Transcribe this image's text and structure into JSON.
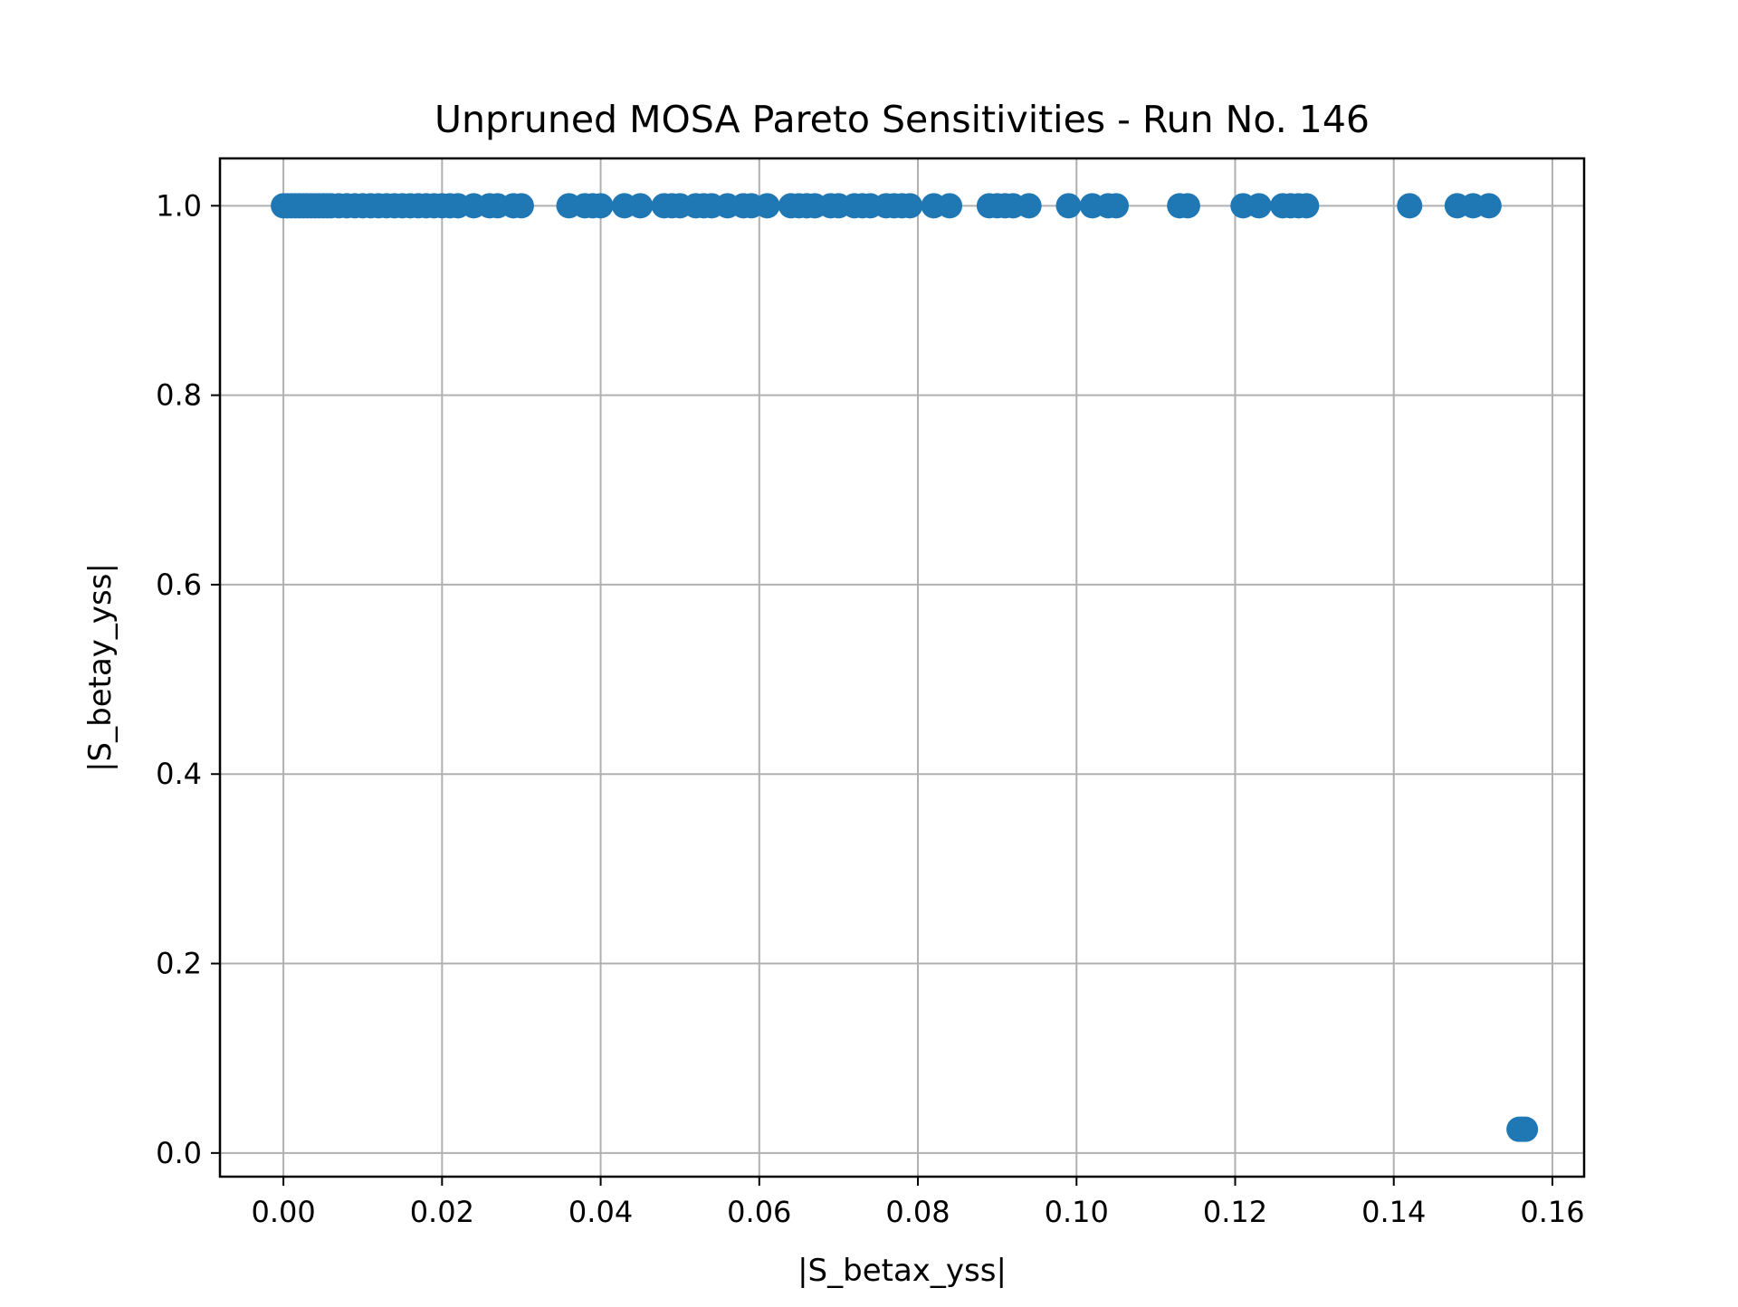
{
  "chart_data": {
    "type": "scatter",
    "title": "Unpruned MOSA Pareto Sensitivities - Run No. 146",
    "xlabel": "|S_betax_yss|",
    "ylabel": "|S_betay_yss|",
    "xlim": [
      -0.008,
      0.164
    ],
    "ylim": [
      -0.025,
      1.05
    ],
    "xticks": [
      "0.00",
      "0.02",
      "0.04",
      "0.06",
      "0.08",
      "0.10",
      "0.12",
      "0.14",
      "0.16"
    ],
    "yticks": [
      "0.0",
      "0.2",
      "0.4",
      "0.6",
      "0.8",
      "1.0"
    ],
    "grid": true,
    "marker_color": "#1f77b4",
    "series": [
      {
        "points": [
          [
            0.0,
            1.0
          ],
          [
            0.0005,
            1.0
          ],
          [
            0.001,
            1.0
          ],
          [
            0.0015,
            1.0
          ],
          [
            0.002,
            1.0
          ],
          [
            0.0025,
            1.0
          ],
          [
            0.003,
            1.0
          ],
          [
            0.0035,
            1.0
          ],
          [
            0.004,
            1.0
          ],
          [
            0.0045,
            1.0
          ],
          [
            0.005,
            1.0
          ],
          [
            0.0055,
            1.0
          ],
          [
            0.006,
            1.0
          ],
          [
            0.007,
            1.0
          ],
          [
            0.008,
            1.0
          ],
          [
            0.009,
            1.0
          ],
          [
            0.01,
            1.0
          ],
          [
            0.011,
            1.0
          ],
          [
            0.012,
            1.0
          ],
          [
            0.013,
            1.0
          ],
          [
            0.014,
            1.0
          ],
          [
            0.015,
            1.0
          ],
          [
            0.016,
            1.0
          ],
          [
            0.017,
            1.0
          ],
          [
            0.018,
            1.0
          ],
          [
            0.019,
            1.0
          ],
          [
            0.02,
            1.0
          ],
          [
            0.021,
            1.0
          ],
          [
            0.022,
            1.0
          ],
          [
            0.024,
            1.0
          ],
          [
            0.026,
            1.0
          ],
          [
            0.027,
            1.0
          ],
          [
            0.029,
            1.0
          ],
          [
            0.03,
            1.0
          ],
          [
            0.036,
            1.0
          ],
          [
            0.038,
            1.0
          ],
          [
            0.039,
            1.0
          ],
          [
            0.04,
            1.0
          ],
          [
            0.043,
            1.0
          ],
          [
            0.045,
            1.0
          ],
          [
            0.048,
            1.0
          ],
          [
            0.049,
            1.0
          ],
          [
            0.05,
            1.0
          ],
          [
            0.052,
            1.0
          ],
          [
            0.053,
            1.0
          ],
          [
            0.054,
            1.0
          ],
          [
            0.056,
            1.0
          ],
          [
            0.058,
            1.0
          ],
          [
            0.059,
            1.0
          ],
          [
            0.061,
            1.0
          ],
          [
            0.064,
            1.0
          ],
          [
            0.065,
            1.0
          ],
          [
            0.066,
            1.0
          ],
          [
            0.067,
            1.0
          ],
          [
            0.069,
            1.0
          ],
          [
            0.07,
            1.0
          ],
          [
            0.072,
            1.0
          ],
          [
            0.073,
            1.0
          ],
          [
            0.074,
            1.0
          ],
          [
            0.076,
            1.0
          ],
          [
            0.077,
            1.0
          ],
          [
            0.078,
            1.0
          ],
          [
            0.079,
            1.0
          ],
          [
            0.082,
            1.0
          ],
          [
            0.084,
            1.0
          ],
          [
            0.089,
            1.0
          ],
          [
            0.09,
            1.0
          ],
          [
            0.091,
            1.0
          ],
          [
            0.092,
            1.0
          ],
          [
            0.094,
            1.0
          ],
          [
            0.099,
            1.0
          ],
          [
            0.102,
            1.0
          ],
          [
            0.104,
            1.0
          ],
          [
            0.105,
            1.0
          ],
          [
            0.113,
            1.0
          ],
          [
            0.114,
            1.0
          ],
          [
            0.121,
            1.0
          ],
          [
            0.123,
            1.0
          ],
          [
            0.126,
            1.0
          ],
          [
            0.127,
            1.0
          ],
          [
            0.128,
            1.0
          ],
          [
            0.129,
            1.0
          ],
          [
            0.142,
            1.0
          ],
          [
            0.148,
            1.0
          ],
          [
            0.15,
            1.0
          ],
          [
            0.152,
            1.0
          ],
          [
            0.1558,
            0.025
          ],
          [
            0.1562,
            0.025
          ],
          [
            0.1566,
            0.025
          ]
        ]
      }
    ]
  }
}
